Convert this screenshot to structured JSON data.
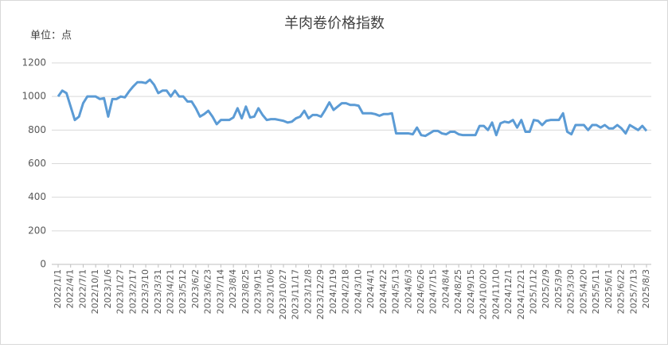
{
  "chart_data": {
    "type": "line",
    "title": "羊肉卷价格指数",
    "unit_label": "单位：点",
    "categories": [
      "2022/1/1",
      null,
      null,
      "2022/4/1",
      null,
      null,
      "2022/7/1",
      null,
      null,
      "2022/10/1",
      null,
      null,
      "2023/1/6",
      null,
      null,
      "2023/1/27",
      null,
      null,
      "2023/2/17",
      null,
      null,
      "2023/3/10",
      null,
      null,
      "2023/3/31",
      null,
      null,
      "2023/4/21",
      null,
      null,
      "2023/5/12",
      null,
      null,
      "2023/6/2",
      null,
      null,
      "2023/6/23",
      null,
      null,
      "2023/7/14",
      null,
      null,
      "2023/8/4",
      null,
      null,
      "2023/8/25",
      null,
      null,
      "2023/9/15",
      null,
      null,
      "2023/10/6",
      null,
      null,
      "2023/10/27",
      null,
      null,
      "2023/11/17",
      null,
      null,
      "2023/12/8",
      null,
      null,
      "2023/12/29",
      null,
      null,
      "2024/1/19",
      null,
      null,
      "2024/2/18",
      null,
      null,
      "2024/3/10",
      null,
      null,
      "2024/4/1",
      null,
      null,
      "2024/4/22",
      null,
      null,
      "2024/5/13",
      null,
      null,
      "2024/6/3",
      null,
      null,
      "2024/6/26",
      null,
      null,
      "2024/7/15",
      null,
      null,
      "2024/8/4",
      null,
      null,
      "2024/8/25",
      null,
      null,
      "2024/9/15",
      null,
      null,
      "2024/10/20",
      null,
      null,
      "2024/11/10",
      null,
      null,
      "2024/12/1",
      null,
      null,
      "2024/12/21",
      null,
      null,
      "2025/1/12",
      null,
      null,
      "2025/2/9",
      null,
      null,
      "2025/3/9",
      null,
      null,
      "2025/3/30",
      null,
      null,
      "2025/4/20",
      null,
      null,
      "2025/5/11",
      null,
      null,
      "2025/6/1",
      null,
      null,
      "2025/6/22",
      null,
      null,
      "2025/7/13",
      null,
      null,
      "2025/8/3"
    ],
    "values": [
      1000,
      1035,
      1020,
      940,
      860,
      880,
      960,
      1000,
      1000,
      1000,
      985,
      990,
      880,
      985,
      985,
      1000,
      995,
      1030,
      1060,
      1085,
      1085,
      1080,
      1100,
      1070,
      1020,
      1035,
      1035,
      1000,
      1035,
      1000,
      1000,
      970,
      970,
      930,
      880,
      895,
      915,
      880,
      835,
      860,
      860,
      860,
      875,
      930,
      870,
      940,
      875,
      880,
      930,
      890,
      860,
      865,
      865,
      860,
      855,
      845,
      850,
      870,
      880,
      915,
      870,
      890,
      890,
      880,
      920,
      965,
      920,
      940,
      960,
      960,
      950,
      950,
      945,
      900,
      900,
      900,
      895,
      885,
      895,
      895,
      900,
      780,
      780,
      780,
      780,
      775,
      815,
      770,
      765,
      780,
      795,
      795,
      780,
      775,
      790,
      790,
      775,
      770,
      770,
      770,
      770,
      825,
      825,
      800,
      845,
      770,
      840,
      850,
      845,
      860,
      815,
      860,
      790,
      790,
      860,
      855,
      830,
      855,
      860,
      860,
      860,
      900,
      790,
      775,
      830,
      830,
      830,
      800,
      830,
      830,
      815,
      830,
      810,
      810,
      830,
      810,
      780,
      830,
      815,
      800,
      825,
      795
    ],
    "color": "#5b9bd5",
    "ylim": [
      0,
      1200
    ],
    "yticks": [
      0,
      200,
      400,
      600,
      800,
      1000,
      1200
    ],
    "grid": true
  }
}
